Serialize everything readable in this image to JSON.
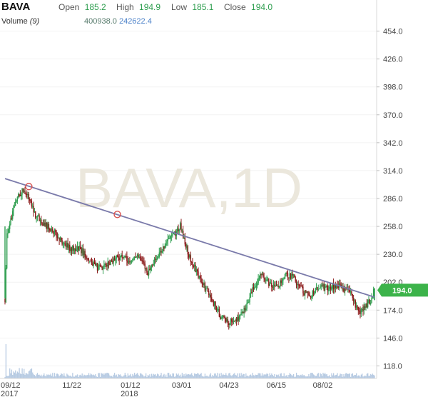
{
  "header": {
    "symbol": "BAVA",
    "open_label": "Open",
    "open_value": "185.2",
    "high_label": "High",
    "high_value": "194.9",
    "low_label": "Low",
    "low_value": "185.1",
    "close_label": "Close",
    "close_value": "194.0",
    "volume_label": "Volume",
    "volume_period": "(9)",
    "volume_value": "400938.0",
    "volume_ma_value": "242622.4"
  },
  "watermark": "BAVA,1D",
  "price_badge": "194.0",
  "colors": {
    "up": "#2e9e4f",
    "down": "#8b1a1a",
    "trendline": "#7a7aaa",
    "badge": "#3cb34a",
    "volume": "#9db8d8"
  },
  "chart_data": {
    "type": "candlestick",
    "y_ticks": [
      "454.0",
      "426.0",
      "398.0",
      "370.0",
      "342.0",
      "314.0",
      "286.0",
      "258.0",
      "230.0",
      "202.0",
      "174.0",
      "146.0",
      "118.0"
    ],
    "ylim": [
      104,
      468
    ],
    "x_ticks": [
      {
        "label": "09/12",
        "sub": "2017"
      },
      {
        "label": "11/22",
        "sub": ""
      },
      {
        "label": "01/12",
        "sub": "2018"
      },
      {
        "label": "03/01",
        "sub": ""
      },
      {
        "label": "04/23",
        "sub": ""
      },
      {
        "label": "06/15",
        "sub": ""
      },
      {
        "label": "08/02",
        "sub": ""
      }
    ],
    "close_path": [
      [
        0,
        185
      ],
      [
        2,
        250
      ],
      [
        5,
        260
      ],
      [
        9,
        275
      ],
      [
        14,
        290
      ],
      [
        20,
        295
      ],
      [
        26,
        285
      ],
      [
        32,
        270
      ],
      [
        40,
        262
      ],
      [
        48,
        256
      ],
      [
        55,
        248
      ],
      [
        62,
        240
      ],
      [
        70,
        235
      ],
      [
        78,
        236
      ],
      [
        86,
        228
      ],
      [
        94,
        218
      ],
      [
        102,
        215
      ],
      [
        110,
        222
      ],
      [
        118,
        228
      ],
      [
        125,
        226
      ],
      [
        132,
        222
      ],
      [
        138,
        230
      ],
      [
        144,
        222
      ],
      [
        150,
        212
      ],
      [
        156,
        222
      ],
      [
        162,
        230
      ],
      [
        168,
        240
      ],
      [
        172,
        245
      ],
      [
        178,
        250
      ],
      [
        184,
        258
      ],
      [
        188,
        246
      ],
      [
        192,
        232
      ],
      [
        196,
        222
      ],
      [
        202,
        210
      ],
      [
        208,
        200
      ],
      [
        214,
        190
      ],
      [
        220,
        180
      ],
      [
        226,
        168
      ],
      [
        232,
        163
      ],
      [
        238,
        162
      ],
      [
        244,
        165
      ],
      [
        250,
        172
      ],
      [
        256,
        185
      ],
      [
        262,
        198
      ],
      [
        268,
        210
      ],
      [
        272,
        206
      ],
      [
        278,
        200
      ],
      [
        284,
        196
      ],
      [
        290,
        203
      ],
      [
        296,
        210
      ],
      [
        302,
        208
      ],
      [
        308,
        200
      ],
      [
        314,
        192
      ],
      [
        320,
        188
      ],
      [
        326,
        194
      ],
      [
        332,
        198
      ],
      [
        338,
        195
      ],
      [
        344,
        198
      ],
      [
        350,
        198
      ],
      [
        356,
        196
      ],
      [
        360,
        194
      ],
      [
        364,
        190
      ],
      [
        368,
        178
      ],
      [
        372,
        170
      ],
      [
        376,
        175
      ],
      [
        380,
        180
      ],
      [
        384,
        182
      ],
      [
        386,
        190
      ],
      [
        388,
        194
      ]
    ],
    "trendline": {
      "points": [
        [
          0,
          306
        ],
        [
          388,
          187
        ]
      ],
      "touch_markers": [
        [
          25,
          298
        ],
        [
          118,
          270
        ]
      ]
    },
    "last_price": 194.0
  }
}
